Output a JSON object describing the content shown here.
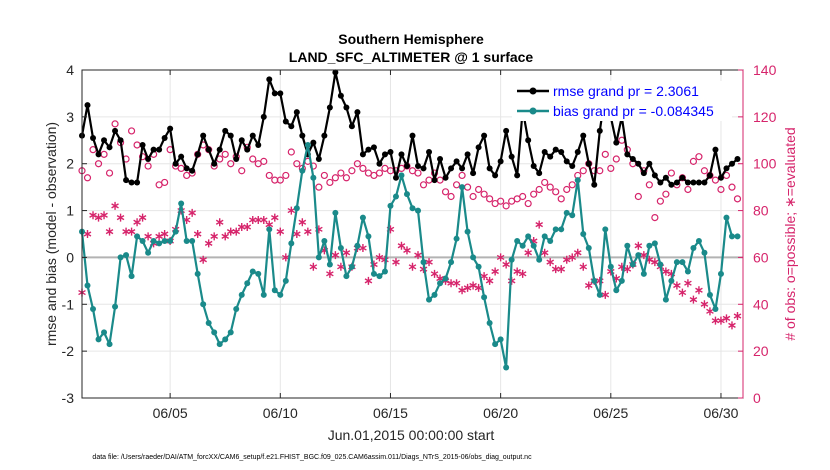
{
  "chart_data": {
    "type": "line",
    "title": "Southern Hemisphere",
    "subtitle": "LAND_SFC_ALTIMETER @ 1 surface",
    "xlabel": "Jun.01,2015 00:00:00 start",
    "ylabel": "rmse and bias (model - observation)",
    "ylabel_right": "# of obs: o=possible; ∗=evaluated",
    "xlim": [
      1,
      31
    ],
    "ylim": [
      -3,
      4
    ],
    "ylim_right": [
      0,
      140
    ],
    "x_ticks": [
      5,
      10,
      15,
      20,
      25,
      30
    ],
    "x_tick_labels": [
      "06/05",
      "06/10",
      "06/15",
      "06/20",
      "06/25",
      "06/30"
    ],
    "y_ticks": [
      -3,
      -2,
      -1,
      0,
      1,
      2,
      3,
      4
    ],
    "y_tick_labels": [
      "-3",
      "-2",
      "-1",
      "0",
      "1",
      "2",
      "3",
      "4"
    ],
    "y_ticks_right": [
      0,
      20,
      40,
      60,
      80,
      100,
      120,
      140
    ],
    "y_tick_labels_right": [
      "0",
      "20",
      "40",
      "60",
      "80",
      "100",
      "120",
      "140"
    ],
    "grid": true,
    "legend_location": "top-right",
    "colors": {
      "rmse": "#000000",
      "bias": "#1a8a8a",
      "obs": "#d6246b",
      "zero_line": "#b3b3b3"
    },
    "series": [
      {
        "name": "rmse grand pr = 2.3061",
        "axis": "left",
        "x": [
          1.0,
          1.25,
          1.5,
          1.75,
          2.0,
          2.25,
          2.5,
          2.75,
          3.0,
          3.25,
          3.5,
          3.75,
          4.0,
          4.25,
          4.5,
          4.75,
          5.0,
          5.25,
          5.5,
          5.75,
          6.0,
          6.25,
          6.5,
          6.75,
          7.0,
          7.25,
          7.5,
          7.75,
          8.0,
          8.25,
          8.5,
          8.75,
          9.0,
          9.25,
          9.5,
          9.75,
          10.0,
          10.25,
          10.5,
          10.75,
          11.0,
          11.25,
          11.5,
          11.75,
          12.0,
          12.25,
          12.5,
          12.75,
          13.0,
          13.25,
          13.5,
          13.75,
          14.0,
          14.25,
          14.5,
          14.75,
          15.0,
          15.25,
          15.5,
          15.75,
          16.0,
          16.25,
          16.5,
          16.75,
          17.0,
          17.25,
          17.5,
          17.75,
          18.0,
          18.25,
          18.5,
          18.75,
          19.0,
          19.25,
          19.5,
          19.75,
          20.0,
          20.25,
          20.5,
          20.75,
          21.0,
          21.25,
          21.5,
          21.75,
          22.0,
          22.25,
          22.5,
          22.75,
          23.0,
          23.25,
          23.5,
          23.75,
          24.0,
          24.25,
          24.5,
          24.75,
          25.0,
          25.25,
          25.5,
          25.75,
          26.0,
          26.25,
          26.5,
          26.75,
          27.0,
          27.25,
          27.5,
          27.75,
          28.0,
          28.25,
          28.5,
          28.75,
          29.0,
          29.25,
          29.5,
          29.75,
          30.0,
          30.25,
          30.5,
          30.75
        ],
        "values": [
          2.6,
          3.25,
          2.55,
          2.2,
          2.5,
          2.35,
          2.7,
          2.5,
          1.65,
          1.6,
          1.6,
          2.4,
          2.1,
          2.3,
          2.3,
          2.55,
          2.75,
          2.0,
          2.15,
          1.9,
          1.85,
          2.2,
          2.6,
          2.3,
          2.0,
          2.3,
          2.7,
          2.6,
          2.1,
          2.5,
          2.3,
          2.6,
          2.4,
          3.0,
          3.8,
          3.5,
          3.5,
          2.9,
          2.8,
          3.1,
          2.6,
          2.2,
          2.45,
          2.1,
          2.6,
          3.2,
          3.95,
          3.45,
          3.2,
          2.8,
          3.1,
          2.2,
          2.3,
          2.35,
          2.0,
          2.2,
          2.25,
          1.7,
          2.2,
          1.95,
          2.6,
          1.95,
          1.9,
          2.25,
          1.65,
          2.1,
          1.7,
          1.9,
          2.05,
          1.9,
          2.2,
          1.8,
          2.35,
          2.6,
          1.9,
          1.75,
          2.05,
          2.7,
          2.15,
          1.75,
          3.15,
          2.5,
          1.95,
          1.8,
          2.25,
          2.15,
          2.3,
          2.25,
          2.05,
          1.95,
          2.25,
          2.6,
          2.0,
          1.55,
          2.7,
          3.5,
          3.0,
          2.45,
          3.0,
          2.2,
          2.1,
          2.0,
          1.8,
          2.0,
          1.75,
          1.6,
          1.7,
          1.55,
          1.6,
          1.7,
          1.6,
          1.6,
          1.6,
          1.6,
          1.75,
          2.3,
          1.7,
          1.9,
          2.0,
          2.1
        ]
      },
      {
        "name": "bias grand pr = -0.084345",
        "axis": "left",
        "x": [
          1.0,
          1.25,
          1.5,
          1.75,
          2.0,
          2.25,
          2.5,
          2.75,
          3.0,
          3.25,
          3.5,
          3.75,
          4.0,
          4.25,
          4.5,
          4.75,
          5.0,
          5.25,
          5.5,
          5.75,
          6.0,
          6.25,
          6.5,
          6.75,
          7.0,
          7.25,
          7.5,
          7.75,
          8.0,
          8.25,
          8.5,
          8.75,
          9.0,
          9.25,
          9.5,
          9.75,
          10.0,
          10.25,
          10.5,
          10.75,
          11.0,
          11.25,
          11.5,
          11.75,
          12.0,
          12.25,
          12.5,
          12.75,
          13.0,
          13.25,
          13.5,
          13.75,
          14.0,
          14.25,
          14.5,
          14.75,
          15.0,
          15.25,
          15.5,
          15.75,
          16.0,
          16.25,
          16.5,
          16.75,
          17.0,
          17.25,
          17.5,
          17.75,
          18.0,
          18.25,
          18.5,
          18.75,
          19.0,
          19.25,
          19.5,
          19.75,
          20.0,
          20.25,
          20.5,
          20.75,
          21.0,
          21.25,
          21.5,
          21.75,
          22.0,
          22.25,
          22.5,
          22.75,
          23.0,
          23.25,
          23.5,
          23.75,
          24.0,
          24.25,
          24.5,
          24.75,
          25.0,
          25.25,
          25.5,
          25.75,
          26.0,
          26.25,
          26.5,
          26.75,
          27.0,
          27.25,
          27.5,
          27.75,
          28.0,
          28.25,
          28.5,
          28.75,
          29.0,
          29.25,
          29.5,
          29.75,
          30.0,
          30.25,
          30.5,
          30.75
        ],
        "values": [
          0.55,
          -0.6,
          -1.1,
          -1.75,
          -1.6,
          -1.85,
          -1.05,
          0.0,
          0.05,
          -0.4,
          0.45,
          0.35,
          0.1,
          0.35,
          0.3,
          0.35,
          0.35,
          0.55,
          1.15,
          0.35,
          0.35,
          -0.35,
          -1.0,
          -1.4,
          -1.6,
          -1.85,
          -1.75,
          -1.6,
          -1.1,
          -0.8,
          -0.55,
          -0.3,
          -0.35,
          -0.8,
          0.6,
          -0.7,
          -0.8,
          -0.5,
          0.3,
          1.05,
          1.85,
          2.4,
          1.7,
          0.0,
          0.35,
          -0.15,
          0.95,
          0.2,
          -0.4,
          -0.2,
          0.25,
          0.85,
          0.45,
          -0.35,
          -0.4,
          -0.3,
          1.1,
          1.3,
          1.75,
          1.35,
          1.05,
          1.0,
          -0.1,
          -0.9,
          -0.8,
          -0.55,
          -0.45,
          -0.1,
          0.4,
          1.5,
          0.55,
          0.0,
          -0.2,
          -0.85,
          -1.4,
          -1.85,
          -1.75,
          -2.35,
          -0.05,
          0.35,
          0.25,
          0.45,
          0.25,
          -0.05,
          0.45,
          0.35,
          0.6,
          0.6,
          0.95,
          0.9,
          1.65,
          0.5,
          0.2,
          -0.5,
          -0.8,
          0.6,
          -0.2,
          -0.7,
          -0.5,
          0.25,
          -0.15,
          0.05,
          -0.35,
          0.25,
          0.3,
          -0.15,
          -0.9,
          -0.5,
          -0.1,
          -0.1,
          -0.3,
          0.2,
          0.35,
          0.1,
          -0.8,
          -1.1,
          -0.35,
          0.85,
          0.45,
          0.45
        ]
      },
      {
        "name": "possible",
        "axis": "right",
        "marker": "circle",
        "x": [
          1.0,
          1.25,
          1.5,
          1.75,
          2.0,
          2.25,
          2.5,
          2.75,
          3.0,
          3.25,
          3.5,
          3.75,
          4.0,
          4.25,
          4.5,
          4.75,
          5.0,
          5.25,
          5.5,
          5.75,
          6.0,
          6.25,
          6.5,
          6.75,
          7.0,
          7.25,
          7.5,
          7.75,
          8.0,
          8.25,
          8.5,
          8.75,
          9.0,
          9.25,
          9.5,
          9.75,
          10.0,
          10.25,
          10.5,
          10.75,
          11.0,
          11.25,
          11.5,
          11.75,
          12.0,
          12.25,
          12.5,
          12.75,
          13.0,
          13.25,
          13.5,
          13.75,
          14.0,
          14.25,
          14.5,
          14.75,
          15.0,
          15.25,
          15.5,
          15.75,
          16.0,
          16.25,
          16.5,
          16.75,
          17.0,
          17.25,
          17.5,
          17.75,
          18.0,
          18.25,
          18.5,
          18.75,
          19.0,
          19.25,
          19.5,
          19.75,
          20.0,
          20.25,
          20.5,
          20.75,
          21.0,
          21.25,
          21.5,
          21.75,
          22.0,
          22.25,
          22.5,
          22.75,
          23.0,
          23.25,
          23.5,
          23.75,
          24.0,
          24.25,
          24.5,
          24.75,
          25.0,
          25.25,
          25.5,
          25.75,
          26.0,
          26.25,
          26.5,
          26.75,
          27.0,
          27.25,
          27.5,
          27.75,
          28.0,
          28.25,
          28.5,
          28.75,
          29.0,
          29.25,
          29.5,
          29.75,
          30.0,
          30.25,
          30.5,
          30.75
        ],
        "values": [
          97,
          94,
          106,
          100,
          104,
          96,
          117,
          109,
          102,
          114,
          108,
          103,
          99,
          104,
          91,
          92,
          106,
          99,
          98,
          95,
          96,
          104,
          108,
          106,
          99,
          102,
          104,
          100,
          103,
          97,
          107,
          102,
          100,
          101,
          95,
          93,
          93,
          95,
          105,
          100,
          98,
          101,
          99,
          90,
          95,
          92,
          94,
          96,
          94,
          97,
          100,
          98,
          96,
          95,
          96,
          98,
          97,
          97,
          98,
          99,
          97,
          96,
          91,
          93,
          96,
          93,
          88,
          86,
          91,
          95,
          90,
          86,
          89,
          87,
          85,
          83,
          84,
          82,
          84,
          85,
          86,
          83,
          87,
          89,
          92,
          90,
          88,
          85,
          89,
          91,
          95,
          97,
          100,
          97,
          97,
          104,
          98,
          102,
          110,
          106,
          100,
          86,
          97,
          91,
          77,
          84,
          87,
          96,
          91,
          94,
          89,
          101,
          103,
          97,
          95,
          93,
          89,
          95,
          90,
          85
        ]
      },
      {
        "name": "evaluated",
        "axis": "right",
        "marker": "asterisk",
        "x": [
          1.0,
          1.25,
          1.5,
          1.75,
          2.0,
          2.25,
          2.5,
          2.75,
          3.0,
          3.25,
          3.5,
          3.75,
          4.0,
          4.25,
          4.5,
          4.75,
          5.0,
          5.25,
          5.5,
          5.75,
          6.0,
          6.25,
          6.5,
          6.75,
          7.0,
          7.25,
          7.5,
          7.75,
          8.0,
          8.25,
          8.5,
          8.75,
          9.0,
          9.25,
          9.5,
          9.75,
          10.0,
          10.25,
          10.5,
          10.75,
          11.0,
          11.25,
          11.5,
          11.75,
          12.0,
          12.25,
          12.5,
          12.75,
          13.0,
          13.25,
          13.5,
          13.75,
          14.0,
          14.25,
          14.5,
          14.75,
          15.0,
          15.25,
          15.5,
          15.75,
          16.0,
          16.25,
          16.5,
          16.75,
          17.0,
          17.25,
          17.5,
          17.75,
          18.0,
          18.25,
          18.5,
          18.75,
          19.0,
          19.25,
          19.5,
          19.75,
          20.0,
          20.25,
          20.5,
          20.75,
          21.0,
          21.25,
          21.5,
          21.75,
          22.0,
          22.25,
          22.5,
          22.75,
          23.0,
          23.25,
          23.5,
          23.75,
          24.0,
          24.25,
          24.5,
          24.75,
          25.0,
          25.25,
          25.5,
          25.75,
          26.0,
          26.25,
          26.5,
          26.75,
          27.0,
          27.25,
          27.5,
          27.75,
          28.0,
          28.25,
          28.5,
          28.75,
          29.0,
          29.25,
          29.5,
          29.75,
          30.0,
          30.25,
          30.5,
          30.75
        ],
        "values": [
          45,
          70,
          78,
          77,
          78,
          71,
          82,
          77,
          71,
          71,
          75,
          77,
          69,
          66,
          69,
          70,
          67,
          72,
          80,
          76,
          79,
          70,
          59,
          66,
          69,
          75,
          69,
          71,
          71,
          73,
          73,
          76,
          76,
          76,
          74,
          77,
          71,
          60,
          80,
          70,
          75,
          71,
          56,
          72,
          63,
          53,
          61,
          56,
          62,
          56,
          64,
          64,
          50,
          57,
          60,
          59,
          72,
          58,
          65,
          63,
          56,
          61,
          55,
          58,
          53,
          51,
          50,
          49,
          49,
          46,
          47,
          48,
          47,
          52,
          50,
          54,
          60,
          57,
          50,
          54,
          53,
          62,
          67,
          74,
          62,
          58,
          55,
          55,
          59,
          60,
          62,
          56,
          48,
          50,
          50,
          44,
          54,
          51,
          56,
          55,
          57,
          65,
          61,
          59,
          58,
          56,
          54,
          53,
          48,
          45,
          49,
          42,
          46,
          40,
          37,
          33,
          33,
          34,
          31,
          35
        ]
      }
    ],
    "xlabel_note": "data file: /Users/raeder/DAI/ATM_forcXX/CAM6_setup/f.e21.FHIST_BGC.f09_025.CAM6assim.011/Diags_NTrS_2015-06/obs_diag_output.nc"
  }
}
